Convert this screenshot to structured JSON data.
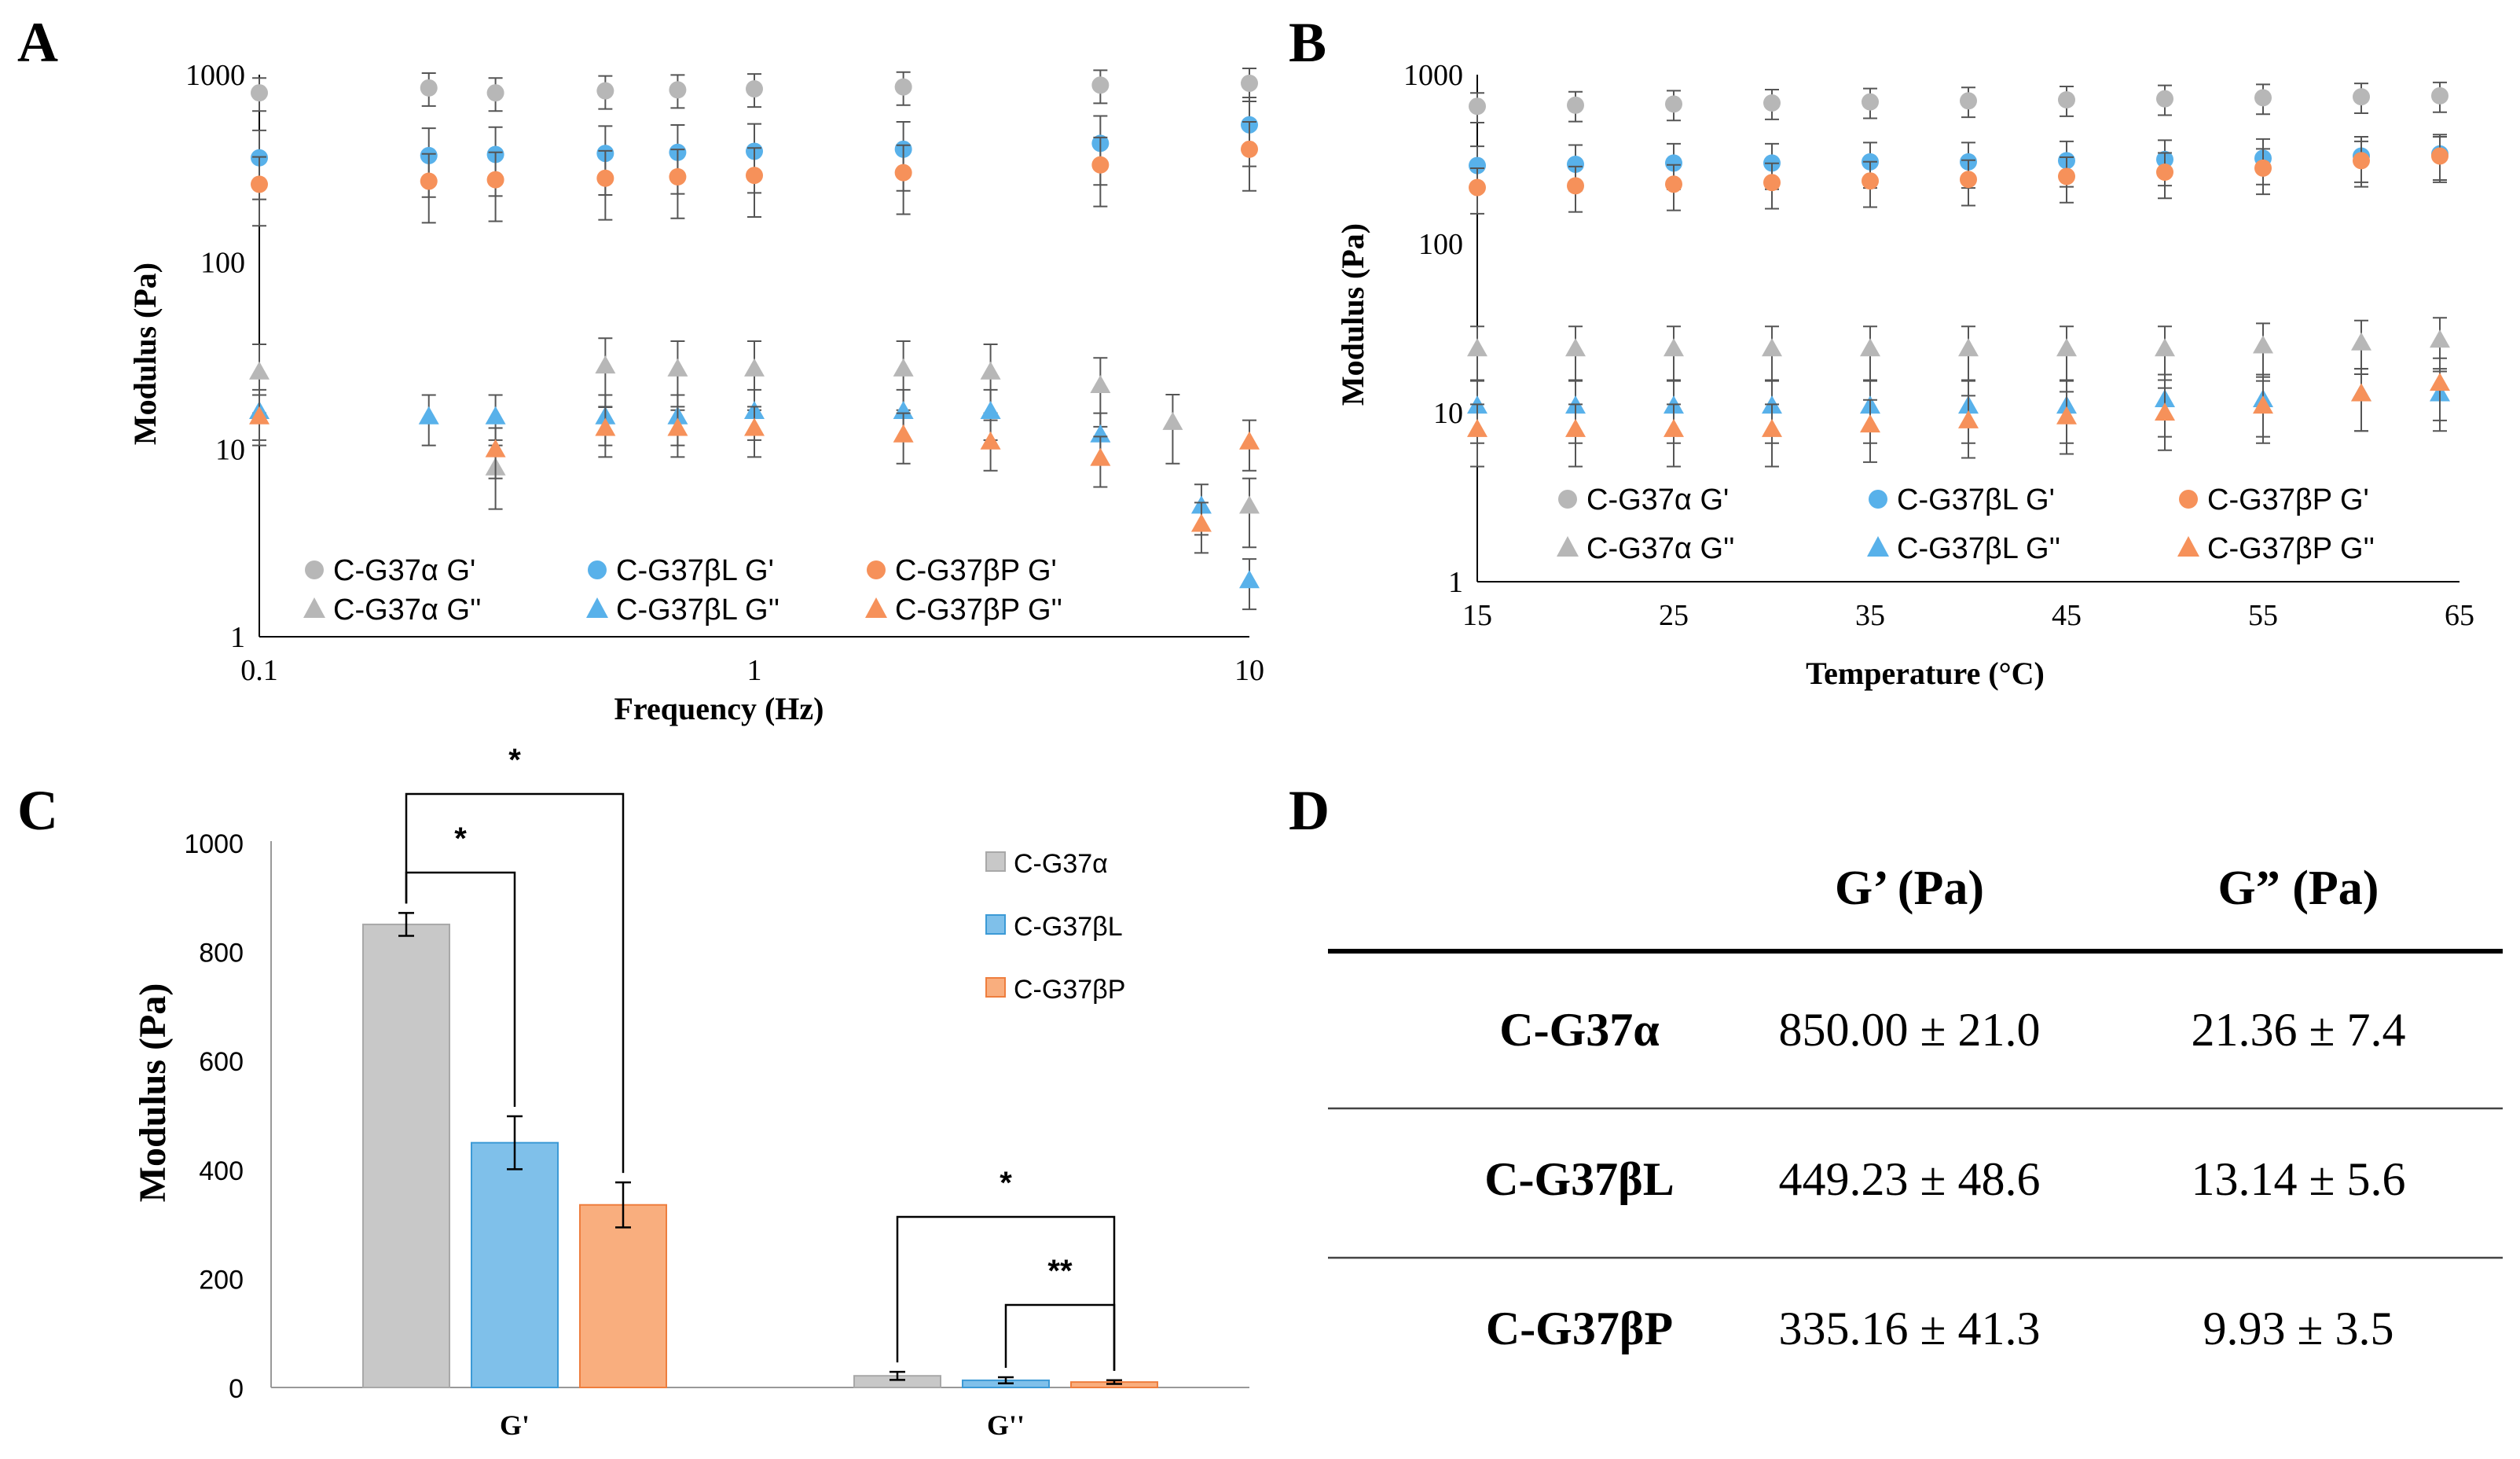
{
  "colors": {
    "alpha": "#b7b7b7",
    "betaL": "#58b1ea",
    "betaP": "#f6915a",
    "alphaBar": "#c8c8c8",
    "betaLBar": "#7fc0ea",
    "betaPBar": "#f9ae7e",
    "errorbar": "#555555"
  },
  "chart_data": [
    {
      "id": "A",
      "panel_label": "A",
      "type": "scatter",
      "xscale": "log",
      "yscale": "log",
      "xlabel": "Frequency (Hz)",
      "ylabel": "Modulus (Pa)",
      "xlim": [
        0.1,
        10
      ],
      "ylim": [
        1,
        1000
      ],
      "xticks": [
        "0.1",
        "1",
        "10"
      ],
      "yticks": [
        "1",
        "10",
        "100",
        "1000"
      ],
      "legend_position": "bottom-left",
      "series": [
        {
          "name": "C-G37α G'",
          "marker": "circle",
          "color": "alpha",
          "x": [
            0.1,
            0.22,
            0.3,
            0.5,
            0.7,
            1,
            2,
            5,
            10
          ],
          "y": [
            800,
            850,
            800,
            820,
            830,
            840,
            860,
            880,
            900
          ],
          "err_frac": 0.2
        },
        {
          "name": "C-G37βL G'",
          "marker": "circle",
          "color": "betaL",
          "x": [
            0.1,
            0.22,
            0.3,
            0.5,
            0.7,
            1,
            2,
            5,
            10
          ],
          "y": [
            360,
            370,
            375,
            380,
            385,
            390,
            400,
            430,
            540
          ],
          "err_frac": 0.4
        },
        {
          "name": "C-G37βP G'",
          "marker": "circle",
          "color": "betaP",
          "x": [
            0.1,
            0.22,
            0.3,
            0.5,
            0.7,
            1,
            2,
            5,
            10
          ],
          "y": [
            260,
            270,
            275,
            280,
            285,
            290,
            300,
            330,
            400
          ],
          "err_frac": 0.4
        },
        {
          "name": "C-G37α G''",
          "marker": "triangle",
          "color": "alpha",
          "x": [
            0.1,
            0.3,
            0.5,
            0.7,
            1,
            2,
            3,
            5,
            7,
            10
          ],
          "y": [
            26,
            8,
            28,
            27,
            27,
            27,
            26,
            22,
            14,
            5
          ],
          "err_frac": 0.4
        },
        {
          "name": "C-G37βL G''",
          "marker": "triangle",
          "color": "betaL",
          "x": [
            0.1,
            0.22,
            0.3,
            0.5,
            0.7,
            1,
            2,
            3,
            5,
            8,
            10
          ],
          "y": [
            16,
            15,
            15,
            15,
            15,
            16,
            16,
            16,
            12,
            5,
            2
          ],
          "err_frac": 0.3
        },
        {
          "name": "C-G37βP G''",
          "marker": "triangle",
          "color": "betaP",
          "x": [
            0.1,
            0.3,
            0.5,
            0.7,
            1,
            2,
            3,
            5,
            8,
            10
          ],
          "y": [
            15,
            10,
            13,
            13,
            13,
            12,
            11,
            9,
            4,
            11
          ],
          "err_frac": 0.3
        }
      ]
    },
    {
      "id": "B",
      "panel_label": "B",
      "type": "scatter",
      "xscale": "linear",
      "yscale": "log",
      "xlabel": "Temperature (°C)",
      "ylabel": "Modulus (Pa)",
      "xlim": [
        15,
        65
      ],
      "ylim": [
        1,
        1000
      ],
      "xticks": [
        "15",
        "25",
        "35",
        "45",
        "55",
        "65"
      ],
      "yticks": [
        "1",
        "10",
        "100",
        "1000"
      ],
      "legend_position": "bottom",
      "series": [
        {
          "name": "C-G37α G'",
          "marker": "circle",
          "color": "alpha",
          "x": [
            15,
            20,
            25,
            30,
            35,
            40,
            45,
            50,
            55,
            60,
            64
          ],
          "y": [
            650,
            660,
            670,
            680,
            690,
            700,
            710,
            720,
            730,
            740,
            750
          ],
          "err_frac": 0.2
        },
        {
          "name": "C-G37βL G'",
          "marker": "circle",
          "color": "betaL",
          "x": [
            15,
            20,
            25,
            30,
            35,
            40,
            45,
            50,
            55,
            60,
            64
          ],
          "y": [
            290,
            295,
            300,
            300,
            305,
            305,
            310,
            315,
            320,
            330,
            340
          ],
          "err_frac": 0.3
        },
        {
          "name": "C-G37βP G'",
          "marker": "circle",
          "color": "betaP",
          "x": [
            15,
            20,
            25,
            30,
            35,
            40,
            45,
            50,
            55,
            60,
            64
          ],
          "y": [
            215,
            220,
            225,
            230,
            235,
            240,
            250,
            265,
            280,
            310,
            330
          ],
          "err_frac": 0.3
        },
        {
          "name": "C-G37α G''",
          "marker": "triangle",
          "color": "alpha",
          "x": [
            15,
            20,
            25,
            30,
            35,
            40,
            45,
            50,
            55,
            60,
            64
          ],
          "y": [
            24,
            24,
            24,
            24,
            24,
            24,
            24,
            24,
            25,
            26,
            27
          ],
          "err_frac": 0.35
        },
        {
          "name": "C-G37βL G''",
          "marker": "triangle",
          "color": "betaL",
          "x": [
            15,
            20,
            25,
            30,
            35,
            40,
            45,
            50,
            55,
            60,
            64
          ],
          "y": [
            11,
            11,
            11,
            11,
            11,
            11,
            11,
            12,
            12,
            13,
            13
          ],
          "err_frac": 0.4
        },
        {
          "name": "C-G37βP G''",
          "marker": "triangle",
          "color": "betaP",
          "x": [
            15,
            20,
            25,
            30,
            35,
            40,
            45,
            50,
            55,
            60,
            64
          ],
          "y": [
            8,
            8,
            8,
            8,
            8.5,
            9,
            9.5,
            10,
            11,
            13,
            15
          ],
          "err_frac": 0.4
        }
      ]
    },
    {
      "id": "C",
      "panel_label": "C",
      "type": "bar",
      "categories": [
        "G'",
        "G''"
      ],
      "ylabel": "Modulus (Pa)",
      "ylim": [
        0,
        1000
      ],
      "yticks": [
        "0",
        "200",
        "400",
        "600",
        "800",
        "1000"
      ],
      "legend_position": "top-right",
      "series": [
        {
          "name": "C-G37α",
          "color": "alphaBar",
          "values": [
            850.0,
            21.36
          ],
          "errors": [
            21.0,
            7.4
          ]
        },
        {
          "name": "C-G37βL",
          "color": "betaLBar",
          "values": [
            449.23,
            13.14
          ],
          "errors": [
            48.6,
            5.6
          ]
        },
        {
          "name": "C-G37βP",
          "color": "betaPBar",
          "values": [
            335.16,
            9.93
          ],
          "errors": [
            41.3,
            3.5
          ]
        }
      ],
      "significance": [
        {
          "category": 0,
          "from": 0,
          "to": 2,
          "label": "*",
          "level": "high"
        },
        {
          "category": 0,
          "from": 0,
          "to": 1,
          "label": "*",
          "level": "low"
        },
        {
          "category": 1,
          "from": 0,
          "to": 2,
          "label": "*",
          "level": "high"
        },
        {
          "category": 1,
          "from": 1,
          "to": 2,
          "label": "**",
          "level": "low"
        }
      ]
    },
    {
      "id": "D",
      "panel_label": "D",
      "type": "table",
      "headers": [
        "",
        "G’ (Pa)",
        "G” (Pa)"
      ],
      "rows": [
        [
          "C-G37α",
          "850.00 ± 21.0",
          "21.36 ± 7.4"
        ],
        [
          "C-G37βL",
          "449.23 ± 48.6",
          "13.14 ± 5.6"
        ],
        [
          "C-G37βP",
          "335.16 ± 41.3",
          "9.93 ± 3.5"
        ]
      ]
    }
  ]
}
